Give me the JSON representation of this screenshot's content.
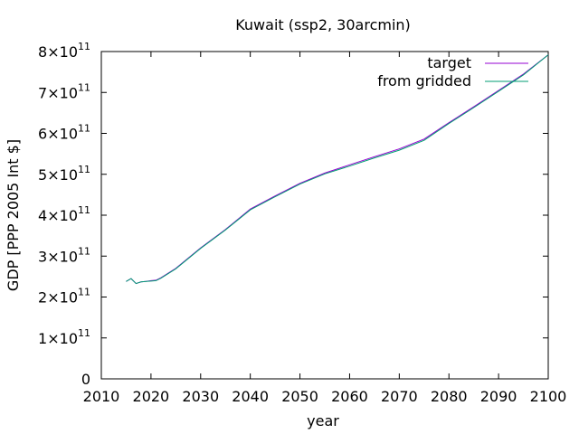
{
  "chart_data": {
    "type": "line",
    "title": "Kuwait (ssp2, 30arcmin)",
    "xlabel": "year",
    "ylabel": "GDP [PPP 2005 Int $]",
    "xlim": [
      2010,
      2100
    ],
    "ylim": [
      0,
      800000000000
    ],
    "grid": false,
    "legend_position": "top-right",
    "x_ticks": [
      2010,
      2020,
      2030,
      2040,
      2050,
      2060,
      2070,
      2080,
      2090,
      2100
    ],
    "x_tick_labels": [
      "2010",
      "2020",
      "2030",
      "2040",
      "2050",
      "2060",
      "2070",
      "2080",
      "2090",
      "2100"
    ],
    "y_ticks": [
      {
        "value": 0,
        "mantissa": "0",
        "exp": ""
      },
      {
        "value": 100000000000,
        "mantissa": "1×10",
        "exp": "11"
      },
      {
        "value": 200000000000,
        "mantissa": "2×10",
        "exp": "11"
      },
      {
        "value": 300000000000,
        "mantissa": "3×10",
        "exp": "11"
      },
      {
        "value": 400000000000,
        "mantissa": "4×10",
        "exp": "11"
      },
      {
        "value": 500000000000,
        "mantissa": "5×10",
        "exp": "11"
      },
      {
        "value": 600000000000,
        "mantissa": "6×10",
        "exp": "11"
      },
      {
        "value": 700000000000,
        "mantissa": "7×10",
        "exp": "11"
      },
      {
        "value": 800000000000,
        "mantissa": "8×10",
        "exp": "11"
      }
    ],
    "series": [
      {
        "name": "target",
        "color": "#9400d3",
        "x": [
          2015,
          2016,
          2017,
          2018,
          2019,
          2020,
          2021,
          2022,
          2025,
          2030,
          2035,
          2040,
          2045,
          2050,
          2055,
          2060,
          2065,
          2070,
          2075,
          2080,
          2085,
          2090,
          2095,
          2100
        ],
        "y": [
          238000000000.0,
          245000000000.0,
          233000000000.0,
          237000000000.0,
          238000000000.0,
          240000000000.0,
          241000000000.0,
          247000000000.0,
          270000000000.0,
          320000000000.0,
          365000000000.0,
          415000000000.0,
          447000000000.0,
          478000000000.0,
          503000000000.0,
          523000000000.0,
          543000000000.0,
          562000000000.0,
          586000000000.0,
          626000000000.0,
          665000000000.0,
          705000000000.0,
          745000000000.0,
          792000000000.0
        ]
      },
      {
        "name": "from gridded",
        "color": "#009e73",
        "x": [
          2015,
          2016,
          2017,
          2018,
          2019,
          2020,
          2021,
          2022,
          2025,
          2030,
          2035,
          2040,
          2045,
          2050,
          2055,
          2060,
          2065,
          2070,
          2075,
          2080,
          2085,
          2090,
          2095,
          2100
        ],
        "y": [
          238000000000.0,
          245000000000.0,
          233000000000.0,
          237000000000.0,
          238000000000.0,
          239000000000.0,
          240000000000.0,
          246000000000.0,
          269000000000.0,
          319000000000.0,
          364000000000.0,
          413000000000.0,
          445000000000.0,
          476000000000.0,
          501000000000.0,
          520000000000.0,
          540000000000.0,
          559000000000.0,
          583000000000.0,
          624000000000.0,
          663000000000.0,
          703000000000.0,
          743000000000.0,
          792000000000.0
        ]
      }
    ]
  }
}
